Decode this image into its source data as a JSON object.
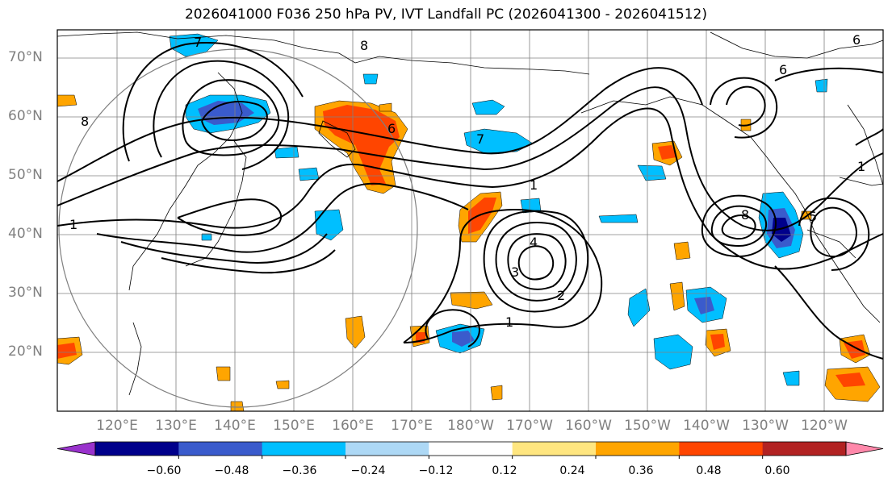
{
  "title": "2026041000 F036 250 hPa PV, IVT Landfall PC (2026041300 - 2026041512)",
  "latitude_labels": [
    "70°N",
    "60°N",
    "50°N",
    "40°N",
    "30°N",
    "20°N"
  ],
  "longitude_labels": [
    "120°E",
    "130°E",
    "140°E",
    "150°E",
    "160°E",
    "170°E",
    "180°W",
    "170°W",
    "160°W",
    "150°W",
    "140°W",
    "130°W",
    "120°W"
  ],
  "contour_labels": [
    "8",
    "8",
    "7",
    "7",
    "6",
    "6",
    "5",
    "4",
    "3",
    "2",
    "1",
    "1",
    "1",
    "1",
    "6",
    "8"
  ],
  "colorbar": {
    "tick_labels": [
      "−0.60",
      "−0.48",
      "−0.36",
      "−0.24",
      "−0.12",
      "0.12",
      "0.24",
      "0.36",
      "0.48",
      "0.60"
    ],
    "colors": [
      "#9932cc",
      "#00008b",
      "#3a5bcc",
      "#00bfff",
      "#add8f5",
      "#ffffff",
      "#ffe680",
      "#ffa500",
      "#ff4500",
      "#b22222",
      "#ff88aa"
    ]
  }
}
